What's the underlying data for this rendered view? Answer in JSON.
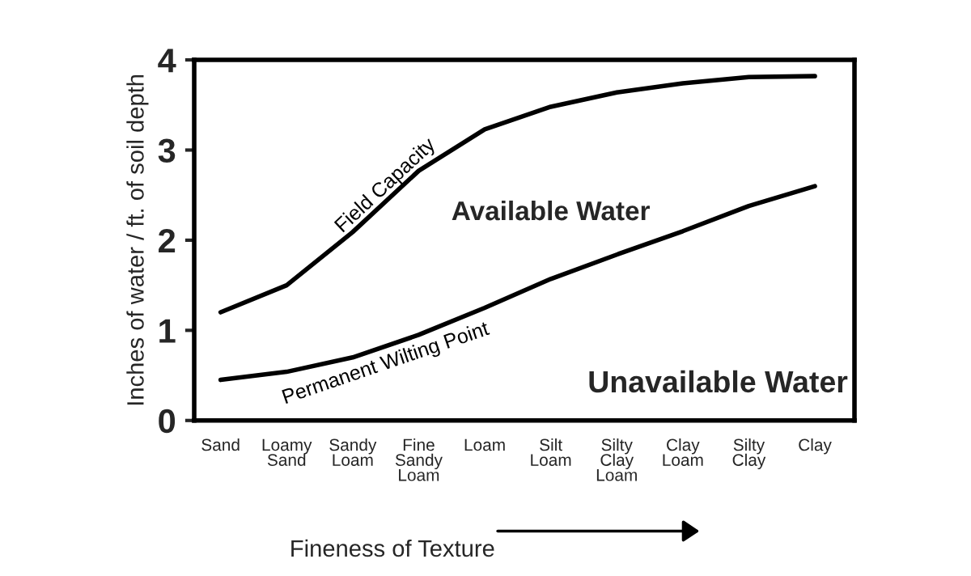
{
  "chart_data": {
    "type": "line",
    "xlabel": "Fineness of Texture",
    "ylabel": "Inches of water / ft. of soil depth",
    "ylim": [
      0,
      4
    ],
    "yticks": [
      0,
      1,
      2,
      3,
      4
    ],
    "categories": [
      "Sand",
      "Loamy\nSand",
      "Sandy\nLoam",
      "Fine\nSandy\nLoam",
      "Loam",
      "Silt\nLoam",
      "Silty\nClay\nLoam",
      "Clay\nLoam",
      "Silty\nClay",
      "Clay"
    ],
    "series": [
      {
        "name": "Field Capacity",
        "color": "#000000",
        "values": [
          1.2,
          1.5,
          2.09,
          2.77,
          3.23,
          3.48,
          3.64,
          3.74,
          3.81,
          3.82
        ]
      },
      {
        "name": "Permanent Wilting Point",
        "color": "#000000",
        "values": [
          0.45,
          0.54,
          0.7,
          0.95,
          1.25,
          1.57,
          1.84,
          2.1,
          2.38,
          2.6
        ]
      }
    ],
    "annotations": [
      "Available Water",
      "Unavailable Water"
    ],
    "grid": false,
    "legend": false,
    "marker": "none",
    "line_style": "solid"
  }
}
